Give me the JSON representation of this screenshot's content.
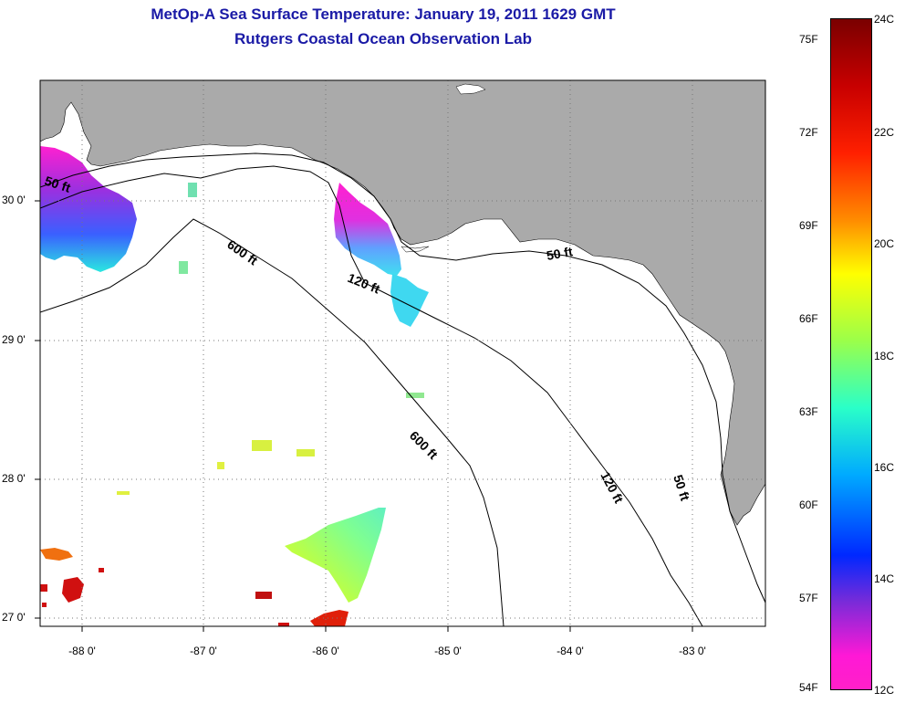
{
  "title": "MetOp-A Sea Surface Temperature:  January 19, 2011 1629 GMT",
  "subtitle": "Rutgers Coastal Ocean Observation Lab",
  "lat_labels": [
    "30 0'",
    "29 0'",
    "28 0'",
    "27 0'"
  ],
  "lon_labels": [
    "-88 0'",
    "-87 0'",
    "-86 0'",
    "-85 0'",
    "-84 0'",
    "-83 0'"
  ],
  "contours": {
    "ft50_a": "50 ft",
    "ft50_b": "50 ft",
    "ft50_c": "50 ft",
    "ft120_a": "120 ft",
    "ft120_b": "120 ft",
    "ft600_a": "600 ft",
    "ft600_b": "600 ft"
  },
  "colorbar": {
    "fahrenheit": [
      "75F",
      "72F",
      "69F",
      "66F",
      "63F",
      "60F",
      "57F",
      "54F"
    ],
    "celsius": [
      "24C",
      "22C",
      "20C",
      "18C",
      "16C",
      "14C",
      "12C"
    ]
  },
  "colors": {
    "land": "#aaaaaa",
    "title": "#1a1aa6"
  }
}
